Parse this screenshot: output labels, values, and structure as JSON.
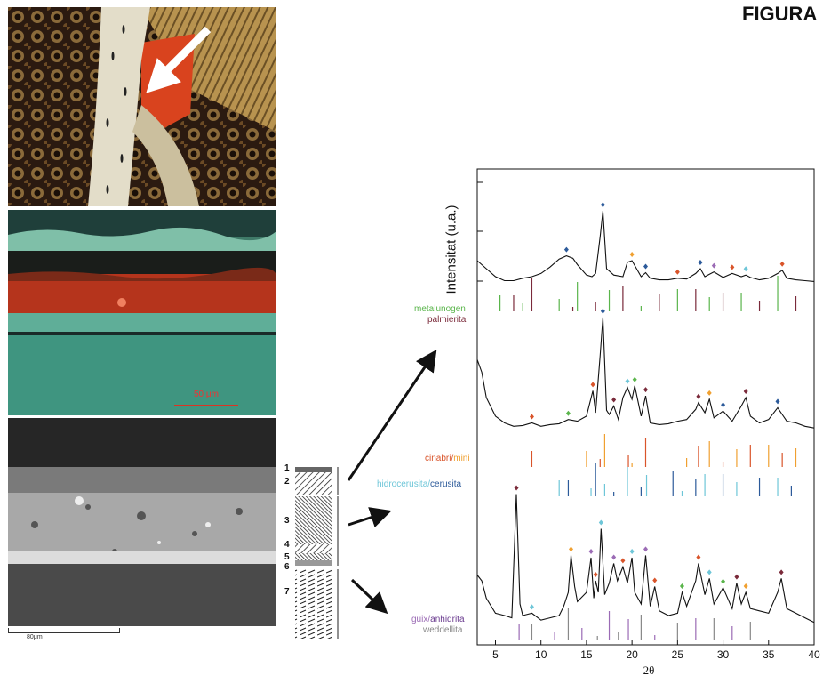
{
  "figure": {
    "title": "FIGURA"
  },
  "panels": {
    "micro_scale_label": "50 μm",
    "sem_scale_label": "80μm"
  },
  "stratigraphy": {
    "layers": [
      "1",
      "2",
      "3",
      "4",
      "5",
      "6",
      "7"
    ]
  },
  "xrd": {
    "y_label": "Intensitat (u.a.)",
    "x_label": "2θ",
    "x_ticks": [
      "5",
      "10",
      "15",
      "20",
      "25",
      "30",
      "35",
      "40"
    ],
    "references": [
      {
        "label": "metalunogen",
        "color": "#5ab54b"
      },
      {
        "label": "palmierita",
        "color": "#7a2a3a"
      },
      {
        "label_a": "cinabri",
        "sep": "/",
        "label_b": "mini",
        "color_a": "#d9542a",
        "color_b": "#f0a030"
      },
      {
        "label_a": "hidrocerusita",
        "sep": "/",
        "label_b": "cerusita",
        "color_a": "#6ec6d8",
        "color_b": "#2c5a9a"
      },
      {
        "label_a": "guix",
        "sep": "/",
        "label_b": "anhidrita",
        "color_a": "#9b6bb5",
        "color_b": "#6a3b8f"
      },
      {
        "label": "weddellita",
        "color": "#888888"
      }
    ]
  },
  "chart_data": {
    "type": "line",
    "title": "",
    "xlabel": "2θ",
    "ylabel": "Intensitat (u.a.)",
    "xlim": [
      3,
      40
    ],
    "x_ticks": [
      5,
      10,
      15,
      20,
      25,
      30,
      35,
      40
    ],
    "grid": false,
    "series": [
      {
        "x": [
          3,
          4,
          5,
          6,
          7,
          8,
          9,
          10,
          11,
          12,
          12.8,
          13.5,
          14,
          15,
          15.6,
          16,
          16.5,
          16.8,
          17.2,
          18,
          19,
          19.5,
          20,
          21,
          21.5,
          22,
          23,
          24,
          25,
          26,
          27,
          27.5,
          28,
          29,
          30,
          31,
          32,
          32.5,
          33,
          34,
          35,
          36,
          36.5,
          37,
          38,
          39,
          40
        ],
        "y": [
          30,
          20,
          10,
          5,
          5,
          8,
          10,
          14,
          22,
          32,
          36,
          33,
          25,
          12,
          10,
          14,
          60,
          92,
          20,
          12,
          10,
          28,
          30,
          10,
          15,
          8,
          6,
          6,
          8,
          7,
          14,
          20,
          10,
          16,
          9,
          14,
          10,
          12,
          9,
          6,
          8,
          14,
          18,
          8,
          6,
          5,
          4
        ]
      },
      {
        "x": [
          3,
          3.5,
          4,
          5,
          6,
          7,
          8,
          9,
          10,
          11,
          12,
          13,
          14,
          15,
          15.7,
          16,
          16.5,
          16.8,
          17.2,
          17.5,
          18,
          18.5,
          19,
          19.5,
          20,
          20.3,
          21,
          21.5,
          22,
          23,
          24,
          25,
          26,
          27,
          27.3,
          28,
          28.5,
          29,
          30,
          31,
          32,
          32.5,
          33,
          34,
          35,
          36,
          36.5,
          37,
          38,
          39,
          40
        ],
        "y": [
          85,
          70,
          40,
          18,
          10,
          6,
          7,
          10,
          6,
          8,
          9,
          14,
          12,
          18,
          48,
          22,
          90,
          135,
          25,
          20,
          30,
          14,
          40,
          52,
          38,
          54,
          18,
          42,
          10,
          8,
          9,
          12,
          14,
          26,
          34,
          22,
          38,
          16,
          24,
          12,
          30,
          40,
          18,
          10,
          14,
          28,
          20,
          12,
          10,
          6,
          4
        ]
      },
      {
        "x": [
          3,
          3.5,
          4,
          5,
          6,
          6.8,
          7.3,
          7.7,
          8,
          9,
          10,
          11,
          12,
          12.5,
          13,
          13.3,
          13.7,
          14,
          15,
          15.5,
          15.8,
          16,
          16.3,
          16.6,
          17,
          17.5,
          18,
          18.4,
          19,
          19.5,
          20,
          20.3,
          21,
          21.5,
          22,
          22.5,
          23,
          24,
          25,
          25.5,
          26,
          27,
          27.3,
          28,
          28.5,
          29,
          30,
          31,
          31.5,
          32,
          32.5,
          33,
          34,
          35,
          36,
          36.4,
          37,
          38,
          39,
          40
        ],
        "y": [
          45,
          40,
          25,
          12,
          10,
          8,
          115,
          20,
          10,
          12,
          6,
          8,
          10,
          18,
          30,
          62,
          35,
          22,
          30,
          60,
          25,
          40,
          30,
          85,
          28,
          38,
          55,
          40,
          52,
          38,
          60,
          30,
          20,
          62,
          18,
          35,
          14,
          10,
          12,
          30,
          18,
          40,
          55,
          28,
          42,
          20,
          34,
          16,
          38,
          20,
          30,
          16,
          14,
          12,
          30,
          42,
          16,
          12,
          8,
          4
        ]
      }
    ]
  }
}
